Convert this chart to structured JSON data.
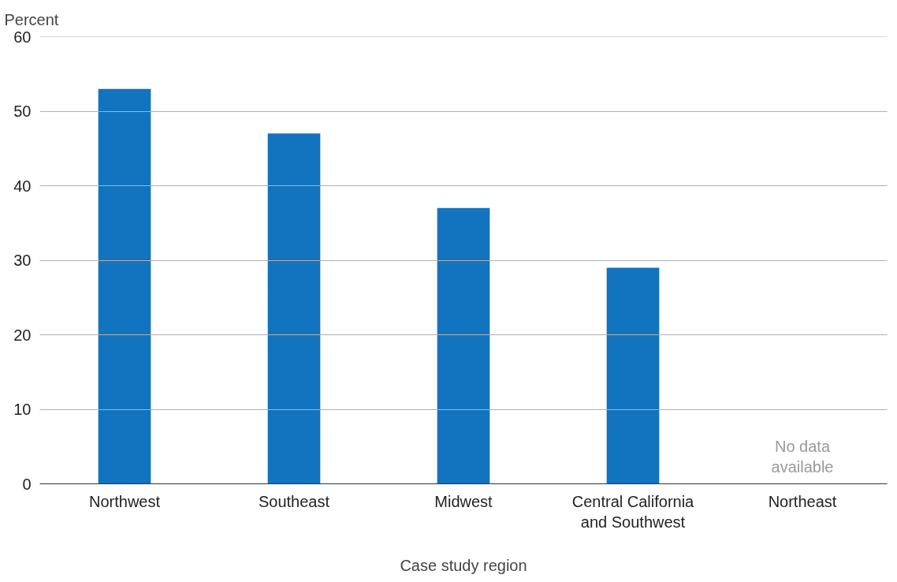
{
  "chart_data": {
    "type": "bar",
    "xlabel": "Case study region",
    "ylabel": "Percent",
    "categories": [
      "Northwest",
      "Southeast",
      "Midwest",
      "Central California\nand Southwest",
      "Northeast"
    ],
    "values": [
      53,
      47,
      37,
      29,
      null
    ],
    "color": "#1273be",
    "ylim": [
      0,
      60
    ],
    "yticks": [
      0,
      10,
      20,
      30,
      40,
      50,
      60
    ],
    "grid": "y",
    "annotations": [
      "No data\navailable"
    ]
  }
}
